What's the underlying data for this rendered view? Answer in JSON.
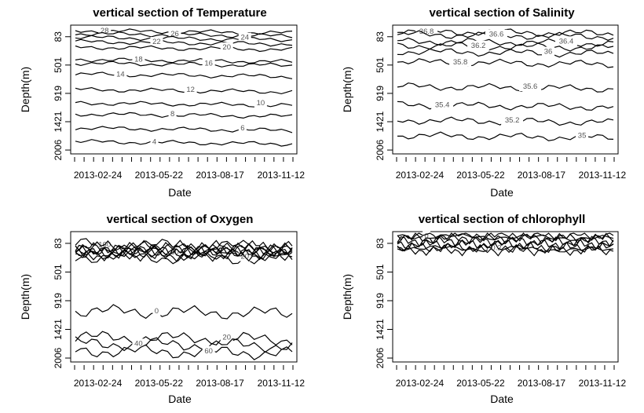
{
  "chart_data": [
    {
      "type": "contour",
      "title": "vertical section of Temperature",
      "xlabel": "Date",
      "ylabel": "Depth(m)",
      "x_ticks": [
        "2013-02-24",
        "2013-05-22",
        "2013-08-17",
        "2013-11-12"
      ],
      "y_ticks": [
        "83",
        "501",
        "919",
        "1421",
        "2006"
      ],
      "levels": [
        {
          "label": "28",
          "depth": 90
        },
        {
          "label": "26",
          "depth": 140
        },
        {
          "label": "24",
          "depth": 200
        },
        {
          "label": "22",
          "depth": 270
        },
        {
          "label": "20",
          "depth": 360
        },
        {
          "label": "18",
          "depth": 560
        },
        {
          "label": "16",
          "depth": 620
        },
        {
          "label": "14",
          "depth": 800
        },
        {
          "label": "12",
          "depth": 1050
        },
        {
          "label": "10",
          "depth": 1270
        },
        {
          "label": "8",
          "depth": 1450
        },
        {
          "label": "6",
          "depth": 1680
        },
        {
          "label": "4",
          "depth": 1900
        }
      ]
    },
    {
      "type": "contour",
      "title": "vertical section of Salinity",
      "xlabel": "Date",
      "ylabel": "Depth(m)",
      "x_ticks": [
        "2013-02-24",
        "2013-05-22",
        "2013-08-17",
        "2013-11-12"
      ],
      "y_ticks": [
        "83",
        "501",
        "919",
        "1421",
        "2006"
      ],
      "levels": [
        {
          "label": "36.8",
          "depth": 100
        },
        {
          "label": "36.6",
          "depth": 150
        },
        {
          "label": "36.4",
          "depth": 260
        },
        {
          "label": "36.2",
          "depth": 330
        },
        {
          "label": "36",
          "depth": 430
        },
        {
          "label": "35.8",
          "depth": 600
        },
        {
          "label": "35.6",
          "depth": 1000
        },
        {
          "label": "35.4",
          "depth": 1300
        },
        {
          "label": "35.2",
          "depth": 1550
        },
        {
          "label": "35",
          "depth": 1800
        }
      ]
    },
    {
      "type": "contour",
      "title": "vertical section of Oxygen",
      "xlabel": "Date",
      "ylabel": "Depth(m)",
      "x_ticks": [
        "2013-02-24",
        "2013-05-22",
        "2013-08-17",
        "2013-11-12"
      ],
      "y_ticks": [
        "83",
        "501",
        "919",
        "1421",
        "2006"
      ],
      "levels": [
        {
          "label": "160",
          "depth": 210
        },
        {
          "label": "60",
          "depth": 330
        },
        {
          "label": "20",
          "depth": 400
        },
        {
          "label": "0",
          "depth": 1280
        },
        {
          "label": "20",
          "depth": 1700
        },
        {
          "label": "40",
          "depth": 1800
        },
        {
          "label": "60",
          "depth": 1920
        }
      ]
    },
    {
      "type": "contour",
      "title": "vertical section of chlorophyll",
      "xlabel": "Date",
      "ylabel": "Depth(m)",
      "x_ticks": [
        "2013-02-24",
        "2013-05-22",
        "2013-08-17",
        "2013-11-12"
      ],
      "y_ticks": [
        "83",
        "501",
        "919",
        "1421",
        "2006"
      ],
      "levels": [
        {
          "label": "0",
          "depth": 70
        },
        {
          "label": "0.2",
          "depth": 260
        }
      ]
    }
  ]
}
